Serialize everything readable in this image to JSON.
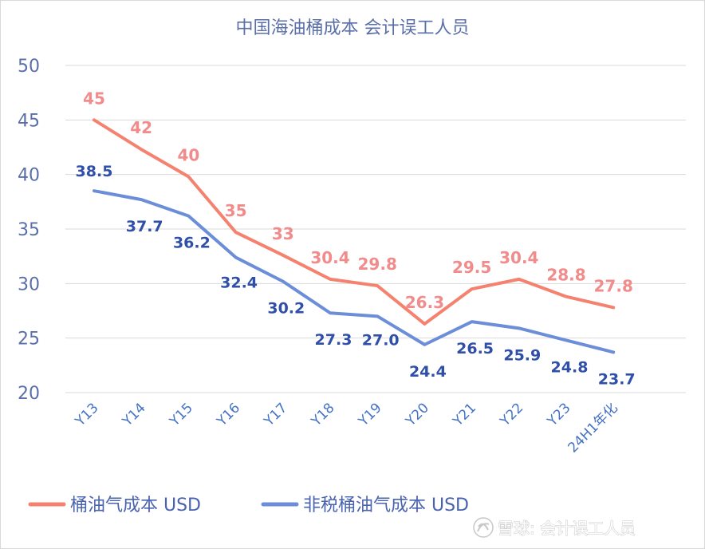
{
  "chart_data": {
    "type": "line",
    "title": "中国海油桶成本  会计误工人员",
    "categories": [
      "Y13",
      "Y14",
      "Y15",
      "Y16",
      "Y17",
      "Y18",
      "Y19",
      "Y20",
      "Y21",
      "Y22",
      "Y23",
      "24H1年化"
    ],
    "ylim": [
      20,
      50
    ],
    "yticks": [
      20,
      25,
      30,
      35,
      40,
      45,
      50
    ],
    "grid": true,
    "legend_position": "bottom-left",
    "series": [
      {
        "name": "桶油气成本 USD",
        "color": "#f4826f",
        "label_color": "#f28b8b",
        "values": [
          45,
          42.3,
          39.8,
          34.7,
          32.6,
          30.4,
          29.8,
          26.3,
          29.5,
          30.4,
          28.8,
          27.8
        ],
        "labels": [
          "45",
          "42",
          "40",
          "35",
          "33",
          "30.4",
          "29.8",
          "26.3",
          "29.5",
          "30.4",
          "28.8",
          "27.8"
        ]
      },
      {
        "name": "非税桶油气成本 USD",
        "color": "#6c8ed8",
        "label_color": "#2f4fa8",
        "values": [
          38.5,
          37.7,
          36.2,
          32.4,
          30.2,
          27.3,
          27.0,
          24.4,
          26.5,
          25.9,
          24.8,
          23.7
        ],
        "labels": [
          "38.5",
          "37.7",
          "36.2",
          "32.4",
          "30.2",
          "27.3",
          "27.0",
          "24.4",
          "26.5",
          "25.9",
          "24.8",
          "23.7"
        ]
      }
    ]
  },
  "watermark": {
    "text": "雪球: 会计误工人员",
    "icon": "snowball-logo-icon"
  }
}
